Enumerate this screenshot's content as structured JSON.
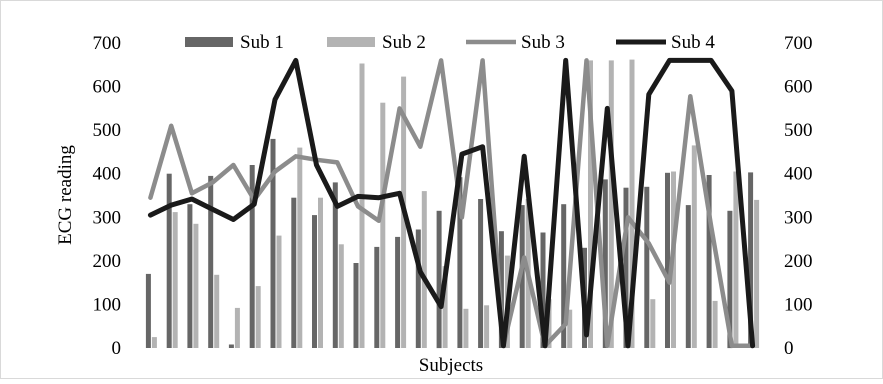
{
  "chart_data": {
    "type": "bar-line-combo",
    "title": "",
    "xlabel": "Subjects",
    "ylabel": "ECG reading",
    "ylim": [
      0,
      700
    ],
    "y_ticks": [
      "0",
      "100",
      "200",
      "300",
      "400",
      "500",
      "600",
      "700"
    ],
    "y2lim": [
      0,
      700
    ],
    "y2_ticks": [
      "0",
      "100",
      "200",
      "300",
      "400",
      "500",
      "600",
      "700"
    ],
    "grid": false,
    "legend_position": "top",
    "n_subjects": 30,
    "series": [
      {
        "name": "Sub 1",
        "type": "bar",
        "color": "#666666",
        "values": [
          170,
          400,
          330,
          395,
          8,
          420,
          480,
          345,
          305,
          380,
          195,
          232,
          255,
          272,
          315,
          392,
          342,
          268,
          328,
          265,
          330,
          230,
          387,
          368,
          370,
          402,
          328,
          397,
          315,
          403
        ]
      },
      {
        "name": "Sub 2",
        "type": "bar",
        "color": "#b3b3b3",
        "values": [
          25,
          312,
          285,
          168,
          92,
          142,
          258,
          460,
          345,
          238,
          653,
          563,
          623,
          360,
          188,
          90,
          98,
          212,
          342,
          112,
          88,
          660,
          660,
          662,
          112,
          405,
          465,
          108,
          405,
          340
        ]
      },
      {
        "name": "Sub 3",
        "type": "line",
        "color": "#8c8c8c",
        "values": [
          345,
          510,
          355,
          380,
          420,
          340,
          405,
          440,
          432,
          426,
          325,
          292,
          550,
          462,
          660,
          300,
          660,
          5,
          208,
          5,
          55,
          660,
          5,
          300,
          240,
          150,
          578,
          280,
          5,
          5
        ]
      },
      {
        "name": "Sub 4",
        "type": "line",
        "color": "#1a1a1a",
        "values": [
          305,
          328,
          342,
          318,
          295,
          330,
          570,
          660,
          420,
          325,
          348,
          345,
          355,
          175,
          95,
          445,
          462,
          5,
          440,
          5,
          660,
          30,
          550,
          5,
          582,
          660,
          660,
          660,
          590,
          5
        ]
      }
    ]
  }
}
